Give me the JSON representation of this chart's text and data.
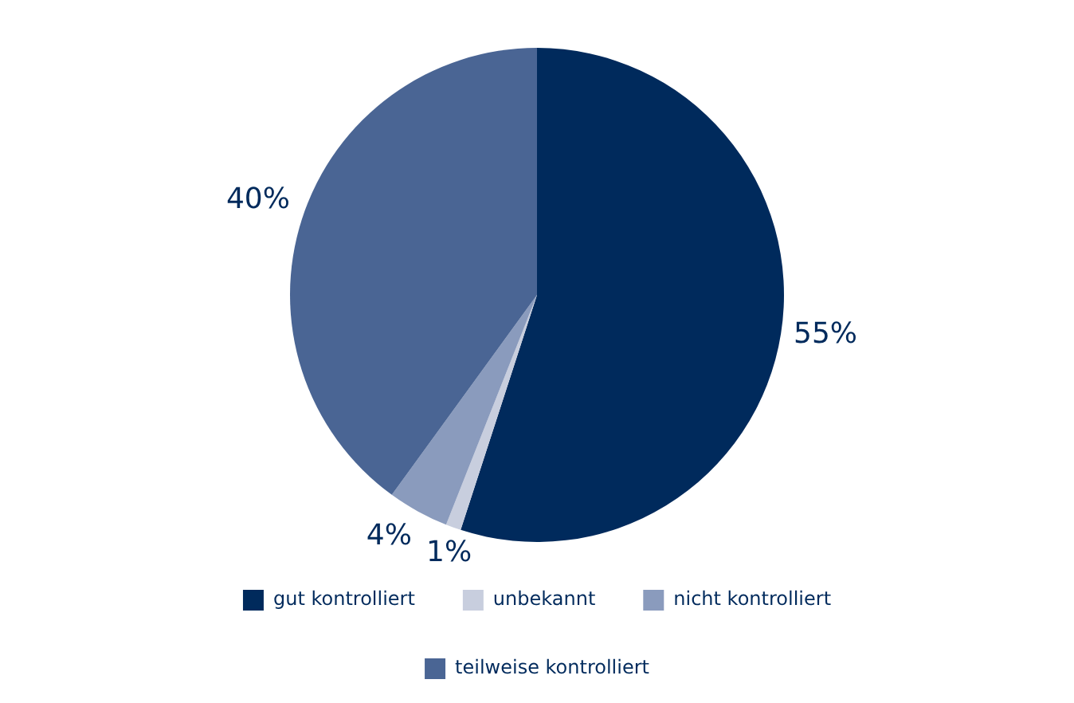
{
  "chart_data": {
    "type": "pie",
    "categories": [
      "gut kontrolliert",
      "unbekannt",
      "nicht kontrolliert",
      "teilweise kontrolliert"
    ],
    "values": [
      55,
      1,
      4,
      40
    ],
    "colors": [
      "#002a5c",
      "#c8cede",
      "#8a9bbd",
      "#4a6594"
    ],
    "value_labels": [
      "55%",
      "1%",
      "4%",
      "40%"
    ],
    "legend": "bottom"
  }
}
